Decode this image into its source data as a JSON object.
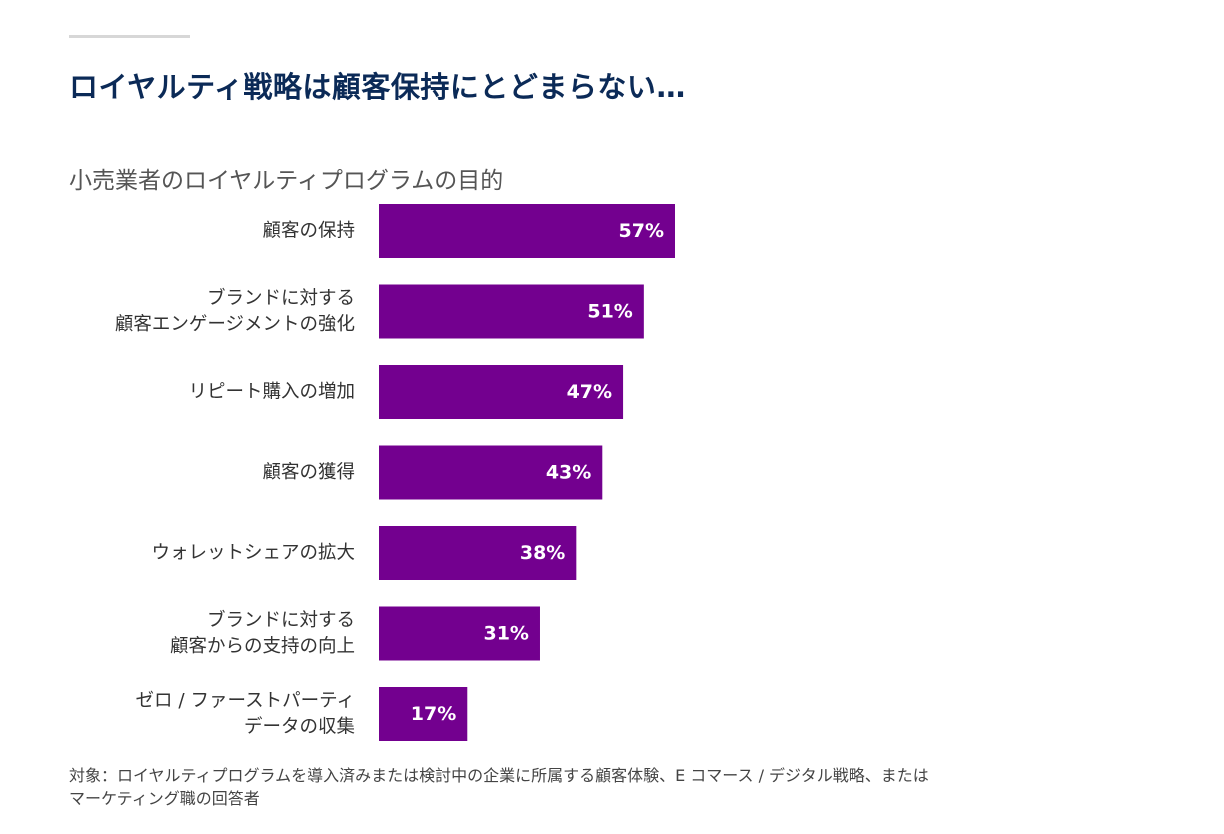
{
  "title": "ロイヤルティ戦略は顧客保持にとどまらない…",
  "subtitle": "小売業者のロイヤルティプログラムの目的",
  "footnote_line1": "対象：ロイヤルティプログラムを導入済みまたは検討中の企業に所属する顧客体験、E コマース / デジタル戦略、または",
  "footnote_line2": "マーケティング職の回答者",
  "colors": {
    "bar": "#73008f",
    "title": "#0b2a57",
    "value_text": "#ffffff"
  },
  "chart_data": {
    "type": "bar",
    "orientation": "horizontal",
    "title": "小売業者のロイヤルティプログラムの目的",
    "unit": "%",
    "xlim": [
      0,
      100
    ],
    "categories": [
      [
        "顧客の保持"
      ],
      [
        "ブランドに対する",
        "顧客エンゲージメントの強化"
      ],
      [
        "リピート購入の増加"
      ],
      [
        "顧客の獲得"
      ],
      [
        "ウォレットシェアの拡大"
      ],
      [
        "ブランドに対する",
        "顧客からの支持の向上"
      ],
      [
        "ゼロ / ファーストパーティ",
        "データの収集"
      ]
    ],
    "values": [
      57,
      51,
      47,
      43,
      38,
      31,
      17
    ],
    "value_labels": [
      "57%",
      "51%",
      "47%",
      "43%",
      "38%",
      "31%",
      "17%"
    ]
  }
}
